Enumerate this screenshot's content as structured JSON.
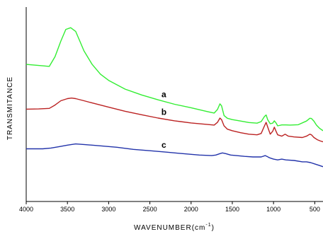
{
  "chart_data": {
    "type": "line",
    "title": "",
    "xlabel": "WAVENUMBER(cm",
    "xlabel_sup": "-1",
    "xlabel_suffix": ")",
    "ylabel": "TRANSMITANCE",
    "xlim": [
      4000,
      400
    ],
    "x_reversed": true,
    "ylim": [
      0,
      100
    ],
    "x_ticks": [
      4000,
      3500,
      3000,
      2500,
      2000,
      1500,
      1000,
      500
    ],
    "x_tick_labels": [
      "4000",
      "3500",
      "3000",
      "2500",
      "2000",
      "1500",
      "1000",
      "500"
    ],
    "y_ticks_shown": false,
    "grid": false,
    "legend": "none",
    "series": [
      {
        "name": "a",
        "color": "#33ee33",
        "label_at": 2330,
        "points": [
          [
            4000,
            70.5
          ],
          [
            3800,
            69.8
          ],
          [
            3720,
            69.5
          ],
          [
            3650,
            74.5
          ],
          [
            3580,
            82.5
          ],
          [
            3520,
            88.5
          ],
          [
            3460,
            89.4
          ],
          [
            3400,
            87.5
          ],
          [
            3350,
            82.5
          ],
          [
            3300,
            77.5
          ],
          [
            3200,
            70.5
          ],
          [
            3100,
            65.5
          ],
          [
            3000,
            62.3
          ],
          [
            2800,
            57.8
          ],
          [
            2600,
            54.8
          ],
          [
            2400,
            52.3
          ],
          [
            2200,
            50.0
          ],
          [
            2000,
            48.2
          ],
          [
            1800,
            46.2
          ],
          [
            1720,
            45.5
          ],
          [
            1680,
            47.3
          ],
          [
            1650,
            50.2
          ],
          [
            1630,
            49.2
          ],
          [
            1600,
            44.2
          ],
          [
            1560,
            42.8
          ],
          [
            1500,
            42.1
          ],
          [
            1400,
            41.4
          ],
          [
            1300,
            40.6
          ],
          [
            1200,
            40.3
          ],
          [
            1150,
            41.1
          ],
          [
            1110,
            43.7
          ],
          [
            1090,
            44.5
          ],
          [
            1070,
            42.0
          ],
          [
            1040,
            40.0
          ],
          [
            1010,
            40.3
          ],
          [
            990,
            41.5
          ],
          [
            970,
            40.4
          ],
          [
            950,
            38.9
          ],
          [
            900,
            39.4
          ],
          [
            850,
            39.4
          ],
          [
            800,
            39.3
          ],
          [
            700,
            39.5
          ],
          [
            600,
            41.4
          ],
          [
            560,
            42.8
          ],
          [
            540,
            42.7
          ],
          [
            510,
            41.3
          ],
          [
            480,
            39.3
          ],
          [
            440,
            37.6
          ],
          [
            400,
            36.4
          ]
        ]
      },
      {
        "name": "b",
        "color": "#bb2222",
        "label_at": 2330,
        "points": [
          [
            4000,
            47.5
          ],
          [
            3850,
            47.6
          ],
          [
            3720,
            47.9
          ],
          [
            3650,
            49.6
          ],
          [
            3580,
            51.8
          ],
          [
            3500,
            52.9
          ],
          [
            3450,
            53.2
          ],
          [
            3400,
            52.9
          ],
          [
            3300,
            51.8
          ],
          [
            3200,
            50.7
          ],
          [
            3000,
            48.5
          ],
          [
            2800,
            46.4
          ],
          [
            2600,
            44.6
          ],
          [
            2400,
            42.9
          ],
          [
            2200,
            41.5
          ],
          [
            2000,
            40.4
          ],
          [
            1800,
            39.6
          ],
          [
            1720,
            39.3
          ],
          [
            1680,
            40.7
          ],
          [
            1650,
            42.9
          ],
          [
            1630,
            42.1
          ],
          [
            1600,
            38.9
          ],
          [
            1560,
            37.2
          ],
          [
            1500,
            36.4
          ],
          [
            1400,
            35.4
          ],
          [
            1300,
            34.6
          ],
          [
            1200,
            34.3
          ],
          [
            1150,
            35.0
          ],
          [
            1110,
            38.9
          ],
          [
            1090,
            40.7
          ],
          [
            1070,
            38.2
          ],
          [
            1040,
            34.6
          ],
          [
            1010,
            36.1
          ],
          [
            990,
            38.2
          ],
          [
            970,
            36.1
          ],
          [
            950,
            34.3
          ],
          [
            900,
            33.6
          ],
          [
            860,
            34.6
          ],
          [
            820,
            33.6
          ],
          [
            750,
            33.2
          ],
          [
            650,
            32.9
          ],
          [
            600,
            33.6
          ],
          [
            560,
            34.6
          ],
          [
            540,
            34.3
          ],
          [
            510,
            32.9
          ],
          [
            470,
            31.8
          ],
          [
            430,
            31.1
          ],
          [
            400,
            30.7
          ]
        ]
      },
      {
        "name": "c",
        "color": "#2233aa",
        "label_at": 2330,
        "points": [
          [
            4000,
            27.1
          ],
          [
            3800,
            27.1
          ],
          [
            3700,
            27.5
          ],
          [
            3600,
            28.2
          ],
          [
            3500,
            29.0
          ],
          [
            3400,
            29.6
          ],
          [
            3300,
            29.3
          ],
          [
            3100,
            28.6
          ],
          [
            2900,
            27.9
          ],
          [
            2700,
            26.8
          ],
          [
            2500,
            26.1
          ],
          [
            2300,
            25.4
          ],
          [
            2100,
            24.6
          ],
          [
            1900,
            23.9
          ],
          [
            1750,
            23.6
          ],
          [
            1700,
            23.9
          ],
          [
            1650,
            24.6
          ],
          [
            1620,
            25.0
          ],
          [
            1580,
            24.6
          ],
          [
            1520,
            23.9
          ],
          [
            1450,
            23.6
          ],
          [
            1350,
            23.2
          ],
          [
            1250,
            22.9
          ],
          [
            1150,
            22.9
          ],
          [
            1100,
            23.6
          ],
          [
            1080,
            23.2
          ],
          [
            1050,
            22.5
          ],
          [
            1000,
            21.8
          ],
          [
            950,
            21.4
          ],
          [
            900,
            21.8
          ],
          [
            850,
            21.4
          ],
          [
            750,
            21.1
          ],
          [
            650,
            20.4
          ],
          [
            600,
            20.4
          ],
          [
            550,
            20.0
          ],
          [
            500,
            19.3
          ],
          [
            450,
            18.6
          ],
          [
            400,
            17.9
          ]
        ]
      }
    ]
  }
}
